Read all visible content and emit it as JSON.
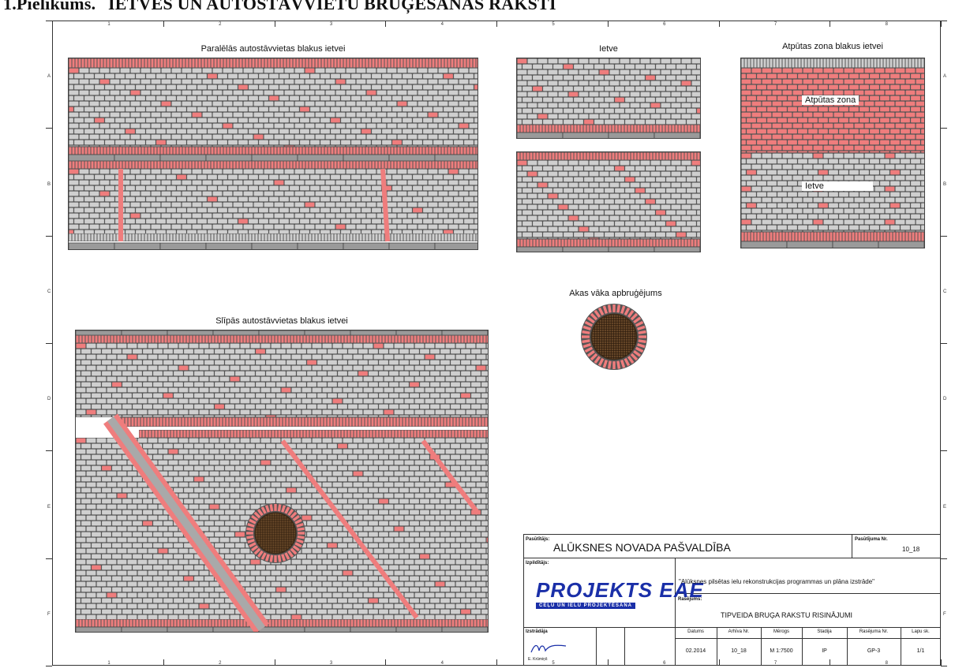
{
  "heading": {
    "label": "1.Pielikums.",
    "title": "IETVES UN AUTOSTĀVVIETU BRUĢĒŠANAS RAKSTI"
  },
  "zones": {
    "top_numbers": [
      "1",
      "2",
      "3",
      "4",
      "5",
      "6",
      "7",
      "8"
    ],
    "side_letters": [
      "A",
      "B",
      "C",
      "D",
      "E",
      "F"
    ]
  },
  "panels": {
    "parallel_parking": {
      "title": "Paralēlās autostāvvietas blakus ietvei"
    },
    "sidewalk": {
      "title": "Ietve"
    },
    "rest_zone": {
      "title": "Atpūtas zona blakus ietvei",
      "zone_label": "Atpūtas zona",
      "sidewalk_label": "Ietve"
    },
    "manhole": {
      "title": "Akas vāka apbruģējums"
    },
    "angled_parking": {
      "title": "Slīpās autostāvvietas blakus ietvei"
    }
  },
  "colors": {
    "paver_grey": "#cfcfcf",
    "paver_red": "#ef7d7d",
    "mortar": "#555555",
    "curb": "#9a9a9a",
    "manhole_grate": "#6b4a2a",
    "logo_blue": "#1a2fa8"
  },
  "title_block": {
    "client_caption": "Pasūtītājs:",
    "client": "ALŪKSNES NOVADA PAŠVALDĪBA",
    "order_no_caption": "Pasūtījuma Nr.",
    "order_no": "10_18",
    "designer_caption": "Izpildītājs:",
    "logo_text": "PROJEKTS EAE",
    "logo_subtitle": "CEĻU UN IELU PROJEKTĒŠANA",
    "project_name": "\"Alūksnes pilsētas ielu rekonstrukcijas programmas un plāna izstrāde\"",
    "drawing_caption": "Rasējums:",
    "drawing_name": "TIPVEIDA BRUĢA RAKSTU RISINĀJUMI",
    "developer_caption": "Izstrādāja",
    "developer_name": "E. Krūmiņš",
    "columns": [
      {
        "header": "Datums",
        "value": "02.2014"
      },
      {
        "header": "Arhīva Nr.",
        "value": "10_18"
      },
      {
        "header": "Mērogs",
        "value": "M 1:7500"
      },
      {
        "header": "Stadija",
        "value": "IP"
      },
      {
        "header": "Rasējuma Nr.",
        "value": "GP-3"
      },
      {
        "header": "Lapu sk.",
        "value": "1/1"
      }
    ]
  }
}
